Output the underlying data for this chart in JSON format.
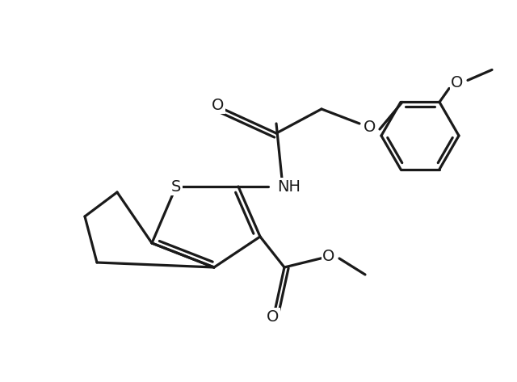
{
  "background": "#ffffff",
  "lc": "#1a1a1a",
  "lw": 2.3,
  "fs": 14,
  "fig_w": 6.4,
  "fig_h": 4.73,
  "dpi": 100,
  "xlim": [
    0,
    6.4
  ],
  "ylim": [
    0,
    4.73
  ]
}
